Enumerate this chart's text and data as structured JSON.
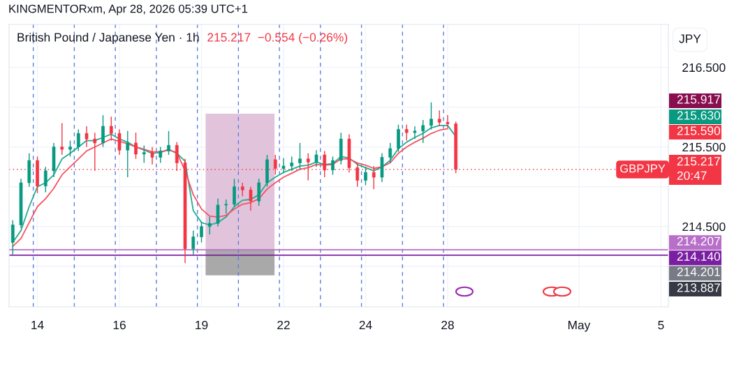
{
  "chart_data": {
    "type": "candlestick",
    "title": "British Pound / Japanese Yen · 1h",
    "subtitle": "215.217  −0.554 (−0.26%)",
    "ylabel": "JPY",
    "categories": [
      null,
      null,
      null,
      "14",
      null,
      null,
      null,
      null,
      null,
      null,
      null,
      null,
      null,
      "16",
      null,
      null,
      null,
      null,
      null,
      null,
      null,
      null,
      null,
      "19",
      null,
      null,
      null,
      null,
      null,
      null,
      null,
      null,
      null,
      "22",
      null,
      null,
      null,
      null,
      null,
      null,
      null,
      null,
      null,
      "24",
      null,
      null,
      null,
      null,
      null,
      null,
      null,
      null,
      null,
      "28",
      null,
      null,
      null,
      null,
      null,
      null,
      null,
      null,
      null,
      null,
      null,
      null,
      null,
      null,
      null,
      "May",
      null,
      null,
      null,
      null,
      null,
      null,
      null,
      null,
      null,
      "5"
    ],
    "ohlc": [
      [
        214.3,
        214.58,
        214.15,
        214.52
      ],
      [
        214.52,
        215.1,
        214.48,
        215.05
      ],
      [
        215.05,
        215.42,
        215.0,
        215.33
      ],
      [
        215.33,
        215.38,
        214.92,
        215.01
      ],
      [
        215.01,
        215.25,
        214.93,
        215.2
      ],
      [
        215.2,
        215.55,
        215.12,
        215.5
      ],
      [
        215.5,
        215.8,
        215.4,
        215.47
      ],
      [
        215.47,
        215.58,
        215.38,
        215.5
      ],
      [
        215.5,
        215.72,
        215.45,
        215.67
      ],
      [
        215.67,
        215.76,
        215.5,
        215.6
      ],
      [
        215.6,
        215.68,
        215.2,
        215.55
      ],
      [
        215.55,
        215.9,
        215.5,
        215.76
      ],
      [
        215.76,
        215.88,
        215.58,
        215.67
      ],
      [
        215.67,
        215.72,
        215.4,
        215.46
      ],
      [
        215.46,
        215.7,
        215.12,
        215.55
      ],
      [
        215.55,
        215.68,
        215.35,
        215.41
      ],
      [
        215.41,
        215.52,
        215.3,
        215.43
      ],
      [
        215.43,
        215.5,
        215.28,
        215.37
      ],
      [
        215.37,
        215.5,
        215.3,
        215.45
      ],
      [
        215.45,
        215.7,
        215.4,
        215.52
      ],
      [
        215.52,
        215.56,
        215.2,
        215.3
      ],
      [
        215.3,
        215.35,
        214.04,
        214.22
      ],
      [
        214.22,
        214.45,
        214.15,
        214.37
      ],
      [
        214.37,
        214.56,
        214.3,
        214.5
      ],
      [
        214.5,
        214.62,
        214.4,
        214.54
      ],
      [
        214.54,
        214.85,
        214.5,
        214.77
      ],
      [
        214.77,
        214.84,
        214.66,
        214.78
      ],
      [
        214.78,
        215.1,
        214.75,
        215.0
      ],
      [
        215.0,
        215.05,
        214.88,
        214.96
      ],
      [
        214.96,
        215.0,
        214.7,
        214.82
      ],
      [
        214.82,
        215.1,
        214.76,
        215.05
      ],
      [
        215.05,
        215.4,
        215.0,
        215.34
      ],
      [
        215.34,
        215.4,
        215.15,
        215.23
      ],
      [
        215.23,
        215.36,
        215.17,
        215.26
      ],
      [
        215.26,
        215.38,
        215.2,
        215.3
      ],
      [
        215.3,
        215.55,
        215.22,
        215.35
      ],
      [
        215.35,
        215.42,
        215.08,
        215.31
      ],
      [
        215.31,
        215.46,
        215.25,
        215.4
      ],
      [
        215.4,
        215.45,
        215.12,
        215.21
      ],
      [
        215.21,
        215.38,
        215.15,
        215.33
      ],
      [
        215.33,
        215.68,
        215.28,
        215.6
      ],
      [
        215.6,
        215.66,
        215.18,
        215.24
      ],
      [
        215.24,
        215.3,
        215.0,
        215.08
      ],
      [
        215.08,
        215.25,
        215.02,
        215.18
      ],
      [
        215.18,
        215.26,
        214.97,
        215.12
      ],
      [
        215.12,
        215.42,
        215.06,
        215.37
      ],
      [
        215.37,
        215.55,
        215.3,
        215.48
      ],
      [
        215.48,
        215.78,
        215.44,
        215.72
      ],
      [
        215.72,
        215.78,
        215.58,
        215.68
      ],
      [
        215.68,
        215.76,
        215.6,
        215.7
      ],
      [
        215.7,
        215.84,
        215.55,
        215.77
      ],
      [
        215.77,
        216.06,
        215.72,
        215.85
      ],
      [
        215.85,
        215.96,
        215.76,
        215.81
      ],
      [
        215.81,
        215.9,
        215.74,
        215.79
      ],
      [
        215.79,
        215.82,
        215.17,
        215.217
      ],
      null,
      null,
      null,
      null,
      null,
      null,
      null,
      null,
      null,
      null,
      null,
      null,
      null,
      null,
      null,
      null,
      null,
      null,
      null,
      null,
      null,
      null,
      null,
      null,
      null
    ],
    "series": [
      {
        "type": "line",
        "color": "#22ab94",
        "values": [
          214.3,
          214.45,
          214.75,
          215.0,
          215.05,
          215.15,
          215.35,
          215.42,
          215.5,
          215.58,
          215.58,
          215.62,
          215.66,
          215.6,
          215.56,
          215.5,
          215.46,
          215.42,
          215.43,
          215.47,
          215.42,
          215.32,
          214.7,
          214.55,
          214.52,
          214.55,
          214.62,
          214.75,
          214.83,
          214.84,
          214.9,
          215.05,
          215.12,
          215.18,
          215.22,
          215.26,
          215.27,
          215.31,
          215.28,
          215.29,
          215.38,
          215.36,
          215.28,
          215.24,
          215.2,
          215.25,
          215.33,
          215.48,
          215.56,
          215.62,
          215.67,
          215.74,
          215.77,
          215.77,
          215.63,
          null,
          null,
          null,
          null,
          null,
          null,
          null,
          null,
          null,
          null,
          null,
          null,
          null,
          null,
          null,
          null,
          null,
          null,
          null,
          null,
          null,
          null,
          null,
          null,
          null
        ]
      },
      {
        "type": "line",
        "color": "#f7525f",
        "values": [
          214.25,
          214.35,
          214.55,
          214.75,
          214.85,
          214.98,
          215.15,
          215.25,
          215.35,
          215.45,
          215.5,
          215.55,
          215.6,
          215.57,
          215.54,
          215.5,
          215.47,
          215.44,
          215.44,
          215.46,
          215.43,
          215.2,
          214.9,
          214.72,
          214.63,
          214.62,
          214.64,
          214.72,
          214.78,
          214.8,
          214.85,
          214.97,
          215.05,
          215.12,
          215.17,
          215.22,
          215.24,
          215.28,
          215.27,
          215.28,
          215.35,
          215.35,
          215.3,
          215.27,
          215.23,
          215.25,
          215.3,
          215.42,
          215.5,
          215.56,
          215.61,
          215.67,
          215.71,
          215.73,
          null,
          null,
          null,
          null,
          null,
          null,
          null,
          null,
          null,
          null,
          null,
          null,
          null,
          null,
          null,
          null,
          null,
          null,
          null,
          null,
          null,
          null,
          null,
          null,
          null,
          null
        ]
      }
    ],
    "ylim": [
      213.49,
      217.04
    ],
    "yticks": [
      {
        "value": 214.0,
        "label": null
      },
      {
        "value": 214.5,
        "label": "214.500"
      },
      {
        "value": 215.0,
        "label": null
      },
      {
        "value": 215.5,
        "label": "215.500"
      },
      {
        "value": 216.0,
        "label": null
      },
      {
        "value": 216.5,
        "label": "216.500"
      }
    ],
    "grid": true,
    "bands": [
      {
        "axis": "y",
        "from": 214.201,
        "to": 215.917,
        "color": "#e1c4dc"
      },
      {
        "axis": "y",
        "from": 213.887,
        "to": 214.201,
        "color": "#a9a9a9"
      }
    ],
    "ref_lines": [
      {
        "axis": "y",
        "value": 214.207,
        "label": "214.207",
        "color": "#b86fc8",
        "line_style": "solid"
      },
      {
        "axis": "y",
        "value": 214.14,
        "label": "214.140",
        "color": "#7b1fa2",
        "line_style": "solid"
      },
      {
        "axis": "y",
        "value": 215.217,
        "label": "215.217\n20:47",
        "color": "#f23645",
        "line_style": "dotted"
      }
    ],
    "annotations": [
      "KINGMENTORxm, Apr 28, 2026 05:39 UTC+1",
      "215.917",
      "215.630",
      "215.590",
      "GBPJPY",
      "214.201",
      "213.887"
    ]
  }
}
